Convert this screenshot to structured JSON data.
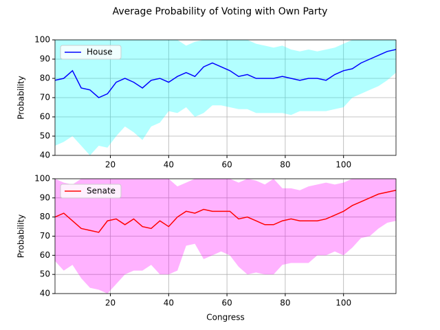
{
  "title": "Average Probability of Voting with Own Party",
  "chart_data": [
    {
      "type": "line",
      "ylabel": "Probability",
      "xlim": [
        1,
        118
      ],
      "ylim": [
        40,
        100
      ],
      "xticks": [
        20,
        40,
        60,
        80,
        100
      ],
      "yticks": [
        40,
        50,
        60,
        70,
        80,
        90,
        100
      ],
      "grid": true,
      "legend": "upper left",
      "x": [
        1,
        4,
        7,
        10,
        13,
        16,
        19,
        22,
        25,
        28,
        31,
        34,
        37,
        40,
        43,
        46,
        49,
        52,
        55,
        58,
        61,
        64,
        67,
        70,
        73,
        76,
        79,
        82,
        85,
        88,
        91,
        94,
        97,
        100,
        103,
        106,
        109,
        112,
        115,
        118
      ],
      "series": [
        {
          "name": "House",
          "color": "#0000ff",
          "band_color": "#00ffff",
          "values": [
            79,
            80,
            84,
            75,
            74,
            70,
            72,
            78,
            80,
            78,
            75,
            79,
            80,
            78,
            81,
            83,
            81,
            86,
            88,
            86,
            84,
            81,
            82,
            80,
            80,
            80,
            81,
            80,
            79,
            80,
            80,
            79,
            82,
            84,
            85,
            88,
            90,
            92,
            94,
            95
          ],
          "lower": [
            45,
            47,
            50,
            45,
            40,
            45,
            44,
            50,
            55,
            52,
            48,
            55,
            57,
            63,
            62,
            65,
            60,
            62,
            66,
            66,
            65,
            64,
            64,
            62,
            62,
            62,
            62,
            61,
            63,
            63,
            63,
            63,
            64,
            65,
            70,
            72,
            74,
            76,
            79,
            83
          ],
          "upper": [
            100,
            100,
            100,
            100,
            100,
            100,
            100,
            100,
            100,
            100,
            100,
            100,
            100,
            100,
            100,
            97,
            99,
            100,
            100,
            100,
            100,
            100,
            100,
            98,
            97,
            96,
            97,
            95,
            94,
            95,
            94,
            95,
            96,
            98,
            100,
            100,
            100,
            100,
            100,
            100
          ]
        }
      ]
    },
    {
      "type": "line",
      "ylabel": "Probability",
      "xlabel": "Congress",
      "xlim": [
        1,
        118
      ],
      "ylim": [
        40,
        100
      ],
      "xticks": [
        20,
        40,
        60,
        80,
        100
      ],
      "yticks": [
        40,
        50,
        60,
        70,
        80,
        90,
        100
      ],
      "grid": true,
      "legend": "upper left",
      "x": [
        1,
        4,
        7,
        10,
        13,
        16,
        19,
        22,
        25,
        28,
        31,
        34,
        37,
        40,
        43,
        46,
        49,
        52,
        55,
        58,
        61,
        64,
        67,
        70,
        73,
        76,
        79,
        82,
        85,
        88,
        91,
        94,
        97,
        100,
        103,
        106,
        109,
        112,
        115,
        118
      ],
      "series": [
        {
          "name": "Senate",
          "color": "#ff0000",
          "band_color": "#ff00ff",
          "values": [
            80,
            82,
            78,
            74,
            73,
            72,
            78,
            79,
            76,
            79,
            75,
            74,
            78,
            75,
            80,
            83,
            82,
            84,
            83,
            83,
            83,
            79,
            80,
            78,
            76,
            76,
            78,
            79,
            78,
            78,
            78,
            79,
            81,
            83,
            86,
            88,
            90,
            92,
            93,
            94
          ],
          "lower": [
            57,
            52,
            55,
            48,
            43,
            42,
            40,
            45,
            50,
            52,
            52,
            55,
            50,
            50,
            52,
            65,
            66,
            58,
            60,
            62,
            60,
            54,
            50,
            51,
            50,
            50,
            55,
            56,
            56,
            56,
            60,
            60,
            62,
            60,
            64,
            69,
            70,
            74,
            77,
            78
          ],
          "upper": [
            100,
            98,
            97,
            100,
            100,
            100,
            100,
            100,
            100,
            100,
            100,
            100,
            100,
            100,
            96,
            98,
            100,
            100,
            100,
            100,
            100,
            98,
            100,
            99,
            97,
            100,
            95,
            95,
            94,
            96,
            97,
            98,
            97,
            98,
            100,
            100,
            100,
            100,
            100,
            100
          ]
        }
      ]
    }
  ]
}
